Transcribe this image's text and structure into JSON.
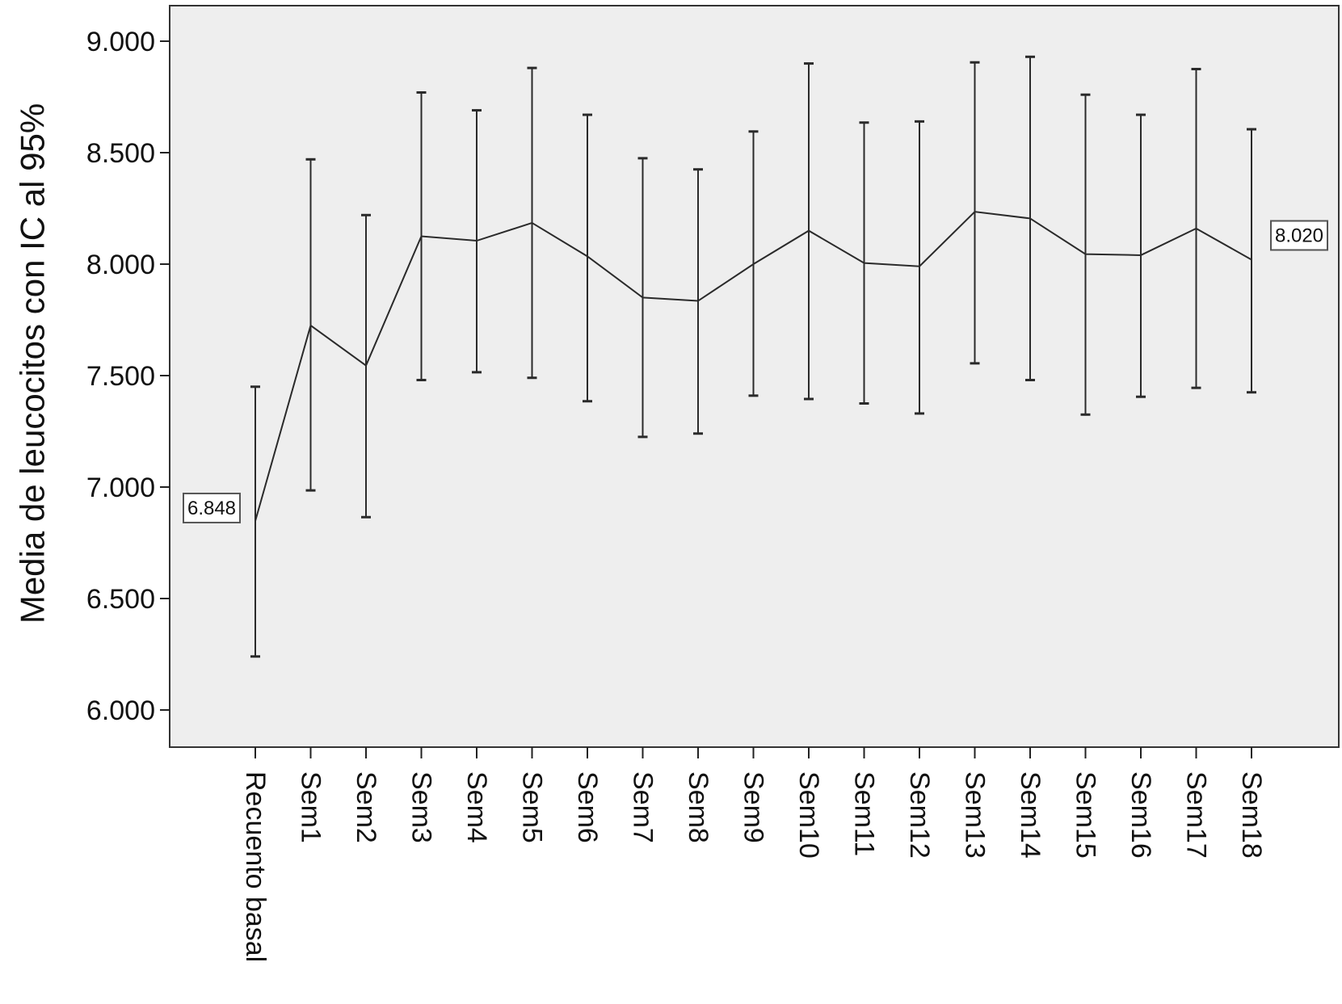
{
  "chart_data": {
    "type": "line",
    "title": "",
    "xlabel": "",
    "ylabel": "Media de leucocitos con IC al 95%",
    "ylim": [
      6000,
      9000
    ],
    "ytick_values": [
      6000,
      6500,
      7000,
      7500,
      8000,
      8500,
      9000
    ],
    "ytick_labels": [
      "6.000",
      "6.500",
      "7.000",
      "7.500",
      "8.000",
      "8.500",
      "9.000"
    ],
    "grid": false,
    "legend": "none",
    "colors": {
      "plot_background": "#eeeeee",
      "line": "#2a2a2a",
      "frame": "#333333"
    },
    "categories": [
      "Recuento basal",
      "Sem1",
      "Sem2",
      "Sem3",
      "Sem4",
      "Sem5",
      "Sem6",
      "Sem7",
      "Sem8",
      "Sem9",
      "Sem10",
      "Sem11",
      "Sem12",
      "Sem13",
      "Sem14",
      "Sem15",
      "Sem16",
      "Sem17",
      "Sem18"
    ],
    "series": [
      {
        "values": [
          6848,
          7725,
          7545,
          8125,
          8105,
          8185,
          8035,
          7850,
          7835,
          8000,
          8150,
          8005,
          7990,
          8235,
          8205,
          8045,
          8040,
          8160,
          8020
        ],
        "ci_lower": [
          6240,
          6985,
          6865,
          7480,
          7515,
          7490,
          7385,
          7225,
          7240,
          7410,
          7395,
          7375,
          7330,
          7555,
          7480,
          7325,
          7405,
          7445,
          7425
        ],
        "ci_upper": [
          7450,
          8470,
          8220,
          8770,
          8690,
          8880,
          8670,
          8475,
          8425,
          8595,
          8900,
          8635,
          8640,
          8905,
          8930,
          8760,
          8670,
          8875,
          8605
        ]
      }
    ],
    "annotations": [
      {
        "text": "6.848",
        "category_index": 0,
        "side": "left"
      },
      {
        "text": "8.020",
        "category_index": 18,
        "side": "right"
      }
    ]
  }
}
